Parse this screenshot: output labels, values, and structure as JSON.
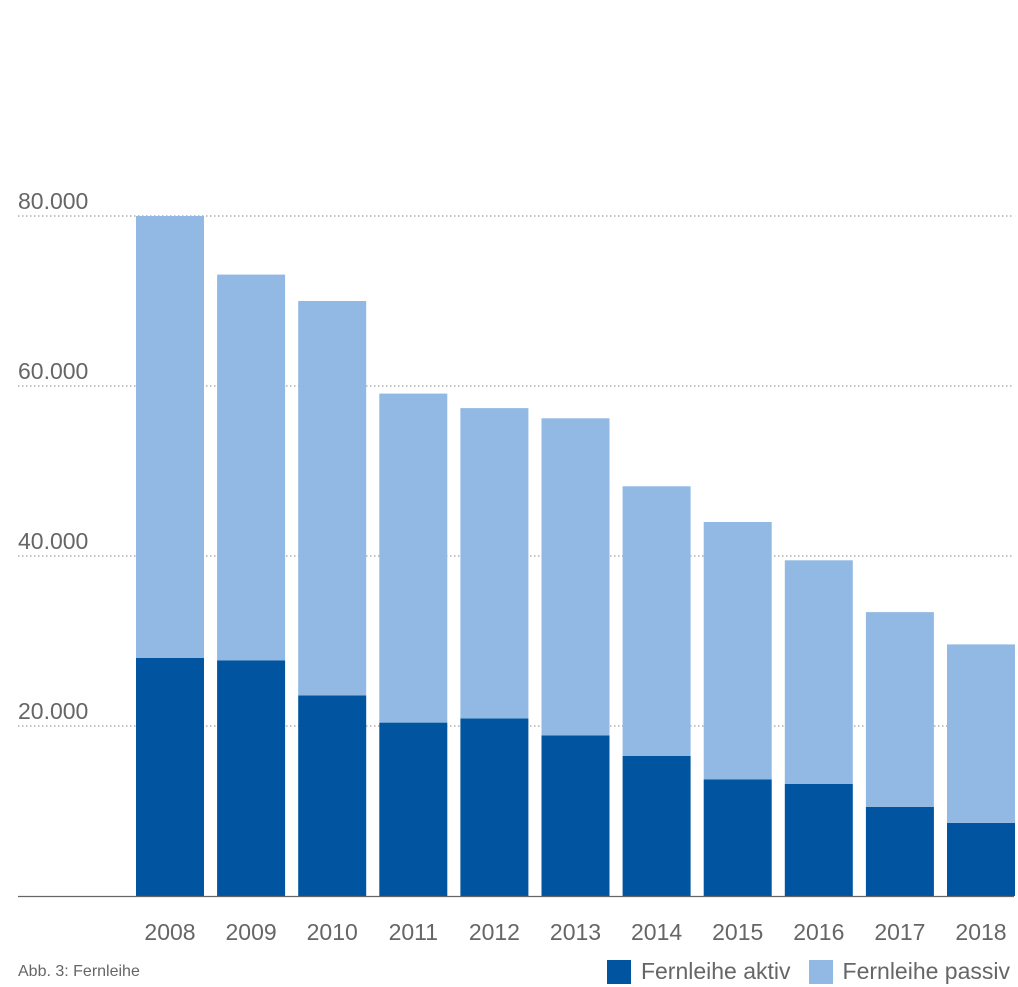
{
  "caption": "Abb. 3: Fernleihe",
  "colors": {
    "aktiv": "#0054a0",
    "passiv": "#91b9e3",
    "axis": "#666666",
    "grid": "#888888"
  },
  "chart_data": {
    "type": "bar",
    "stacked": true,
    "categories": [
      "2008",
      "2009",
      "2010",
      "2011",
      "2012",
      "2013",
      "2014",
      "2015",
      "2016",
      "2017",
      "2018"
    ],
    "series": [
      {
        "name": "Fernleihe aktiv",
        "values": [
          28000,
          27700,
          23600,
          20400,
          20900,
          18900,
          16500,
          13700,
          13200,
          10500,
          8600
        ]
      },
      {
        "name": "Fernleihe passiv",
        "values": [
          52000,
          45400,
          46400,
          38700,
          36500,
          37300,
          31700,
          30300,
          26300,
          22900,
          21000
        ]
      }
    ],
    "ylim": [
      0,
      80000
    ],
    "yticks": [
      {
        "value": 20000,
        "label": "20.000"
      },
      {
        "value": 40000,
        "label": "40.000"
      },
      {
        "value": 60000,
        "label": "60.000"
      },
      {
        "value": 80000,
        "label": "80.000"
      }
    ],
    "grid": true,
    "legend_position": "bottom-right"
  }
}
